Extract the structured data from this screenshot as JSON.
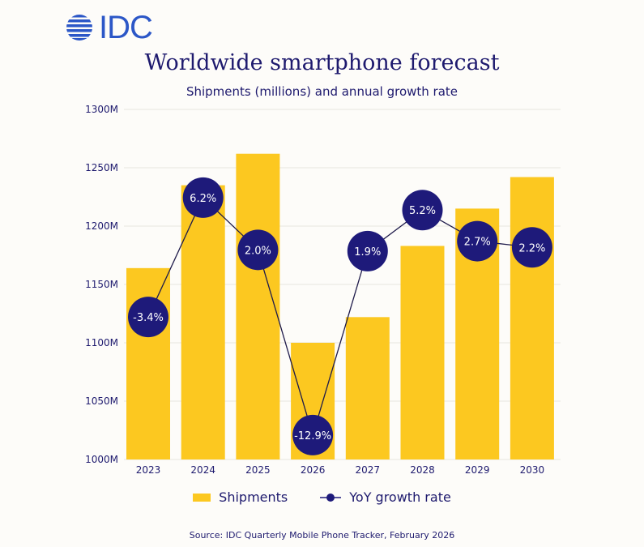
{
  "logo": {
    "text": "IDC",
    "color": "#2c57c7"
  },
  "chart_data": {
    "type": "bar",
    "title": "Worldwide smartphone forecast",
    "subtitle": "Shipments (millions) and annual growth rate",
    "categories": [
      "2023",
      "2024",
      "2025",
      "2026",
      "2027",
      "2028",
      "2029",
      "2030"
    ],
    "series": [
      {
        "name": "Shipments",
        "type": "bar",
        "unit": "M",
        "color": "#fcc820",
        "values": [
          1164,
          1235,
          1262,
          1100,
          1122,
          1183,
          1215,
          1242
        ]
      },
      {
        "name": "YoY growth rate",
        "type": "line",
        "unit": "%",
        "color": "#1e1a7a",
        "values": [
          -3.4,
          6.2,
          2.0,
          -12.9,
          1.9,
          5.2,
          2.7,
          2.2
        ],
        "labels": [
          "-3.4%",
          "6.2%",
          "2.0%",
          "-12.9%",
          "1.9%",
          "5.2%",
          "2.7%",
          "2.2%"
        ]
      }
    ],
    "ylim": [
      1000,
      1300
    ],
    "yticks": [
      "1000M",
      "1050M",
      "1100M",
      "1150M",
      "1200M",
      "1250M",
      "1300M"
    ],
    "grid": true,
    "legend": "bottom"
  },
  "source": "Source:  IDC Quarterly Mobile Phone Tracker, February 2026"
}
